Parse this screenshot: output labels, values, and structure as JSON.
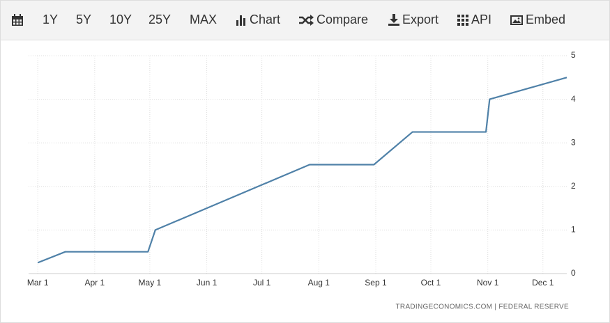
{
  "toolbar": [
    "1Y",
    "5Y",
    "10Y",
    "25Y",
    "MAX",
    "Chart",
    "Compare",
    "Export",
    "API",
    "Embed"
  ],
  "chart_data": {
    "type": "line",
    "x": [
      0,
      15,
      60,
      64,
      148,
      183,
      204,
      244,
      246,
      288
    ],
    "values": [
      0.25,
      0.5,
      0.5,
      1,
      2.5,
      2.5,
      3.25,
      3.25,
      4,
      4.5
    ],
    "color": "#4f81a8",
    "xlim": [
      -5,
      288
    ],
    "xticks": [
      {
        "value": 0,
        "label": "Mar 1"
      },
      {
        "value": 31,
        "label": "Apr 1"
      },
      {
        "value": 61,
        "label": "May 1"
      },
      {
        "value": 92,
        "label": "Jun 1"
      },
      {
        "value": 122,
        "label": "Jul 1"
      },
      {
        "value": 153,
        "label": "Aug 1"
      },
      {
        "value": 184,
        "label": "Sep 1"
      },
      {
        "value": 214,
        "label": "Oct 1"
      },
      {
        "value": 245,
        "label": "Nov 1"
      },
      {
        "value": 275,
        "label": "Dec 1"
      }
    ],
    "ylim": [
      0,
      5
    ],
    "yticks": [
      0,
      1,
      2,
      3,
      4,
      5
    ],
    "grid": true,
    "source": "TRADINGECONOMICS.COM | FEDERAL RESERVE"
  }
}
